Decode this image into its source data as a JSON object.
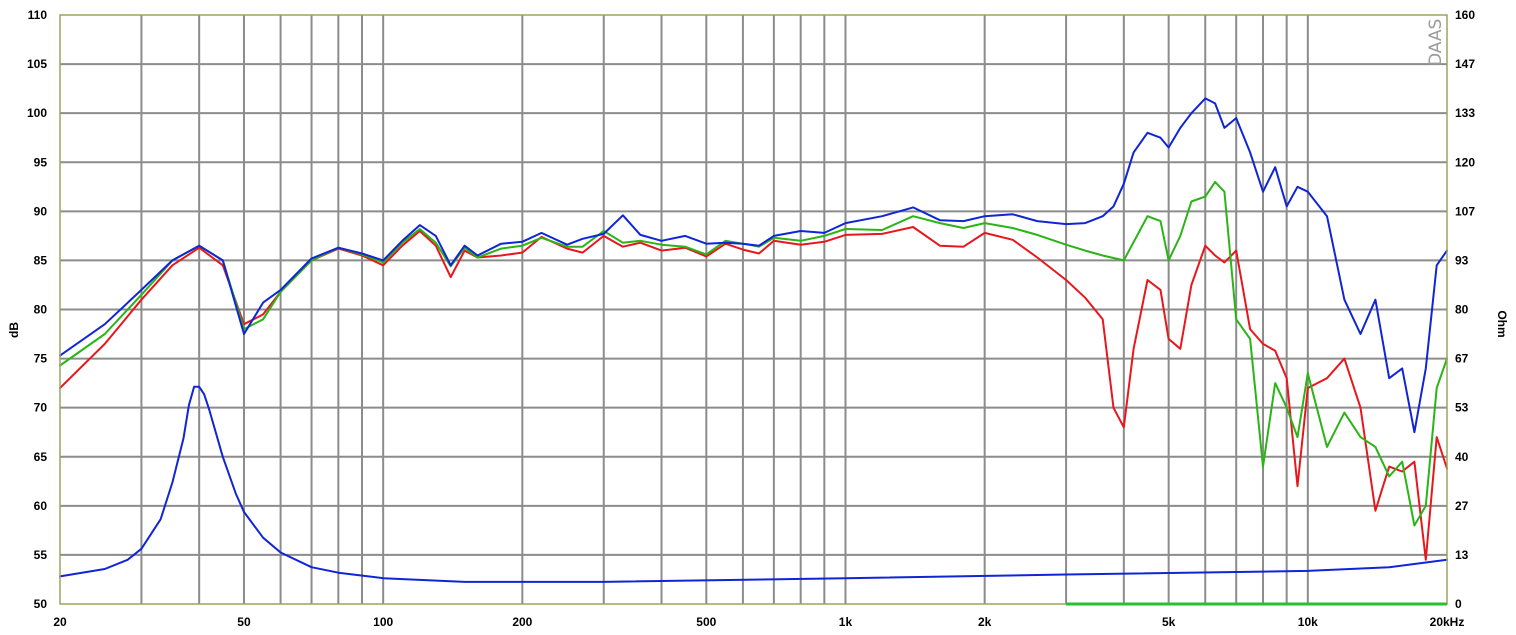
{
  "chart_data": {
    "type": "line",
    "title": "",
    "watermark": "DAAS",
    "xlabel": "",
    "ylabel_left": "dB",
    "ylabel_right": "Ohm",
    "x_scale": "log",
    "xlim": [
      20,
      20000
    ],
    "ylim_left": [
      50,
      110
    ],
    "ylim_right": [
      0,
      160
    ],
    "grid": true,
    "x_ticks": [
      {
        "v": 20,
        "label": "20"
      },
      {
        "v": 50,
        "label": "50"
      },
      {
        "v": 100,
        "label": "100"
      },
      {
        "v": 200,
        "label": "200"
      },
      {
        "v": 500,
        "label": "500"
      },
      {
        "v": 1000,
        "label": "1k"
      },
      {
        "v": 2000,
        "label": "2k"
      },
      {
        "v": 5000,
        "label": "5k"
      },
      {
        "v": 10000,
        "label": "10k"
      },
      {
        "v": 20000,
        "label": "20kHz"
      }
    ],
    "y_ticks_left": [
      "50",
      "55",
      "60",
      "65",
      "70",
      "75",
      "80",
      "85",
      "90",
      "95",
      "100",
      "105",
      "110"
    ],
    "y_ticks_right": [
      "0",
      "13",
      "27",
      "40",
      "53",
      "67",
      "80",
      "93",
      "107",
      "120",
      "133",
      "147",
      "160"
    ],
    "series": [
      {
        "color": "#e8171d",
        "axis": "left",
        "x": [
          20,
          25,
          30,
          35,
          40,
          45,
          50,
          55,
          60,
          70,
          80,
          90,
          100,
          110,
          120,
          130,
          140,
          150,
          160,
          180,
          200,
          220,
          250,
          270,
          300,
          330,
          360,
          400,
          450,
          500,
          550,
          600,
          650,
          700,
          800,
          900,
          1000,
          1200,
          1400,
          1600,
          1800,
          2000,
          2300,
          2600,
          3000,
          3300,
          3600,
          3800,
          4000,
          4200,
          4500,
          4800,
          5000,
          5300,
          5600,
          6000,
          6300,
          6600,
          7000,
          7500,
          8000,
          8500,
          9000,
          9500,
          10000,
          11000,
          12000,
          13000,
          14000,
          15000,
          16000,
          17000,
          18000,
          19000,
          20000
        ],
        "y": [
          72,
          76.5,
          81,
          84.5,
          86.3,
          84.5,
          78.5,
          79.5,
          81.8,
          85,
          86.2,
          85.5,
          84.5,
          86.5,
          88,
          86.5,
          83.3,
          86,
          85.3,
          85.5,
          85.8,
          87.4,
          86.2,
          85.8,
          87.5,
          86.4,
          86.8,
          86,
          86.3,
          85.4,
          86.7,
          86.1,
          85.7,
          87,
          86.6,
          86.9,
          87.6,
          87.7,
          88.4,
          86.5,
          86.4,
          87.8,
          87.1,
          85.3,
          83,
          81.2,
          79,
          70,
          68,
          76,
          83,
          82,
          77,
          76,
          82.5,
          86.5,
          85.5,
          84.8,
          86,
          78,
          76.5,
          75.8,
          73,
          62,
          72,
          73,
          75,
          70,
          59.5,
          64,
          63.5,
          64.5,
          54.5,
          67,
          63.8
        ]
      },
      {
        "color": "#2ab415",
        "axis": "left",
        "x": [
          20,
          25,
          30,
          35,
          40,
          45,
          50,
          55,
          60,
          70,
          80,
          90,
          100,
          110,
          120,
          130,
          140,
          150,
          160,
          180,
          200,
          220,
          250,
          270,
          300,
          330,
          360,
          400,
          450,
          500,
          550,
          600,
          650,
          700,
          800,
          900,
          1000,
          1200,
          1400,
          1600,
          1800,
          2000,
          2300,
          2600,
          3000,
          3300,
          3600,
          4000,
          4500,
          4800,
          5000,
          5300,
          5600,
          6000,
          6300,
          6600,
          7000,
          7500,
          8000,
          8500,
          9000,
          9500,
          10000,
          11000,
          12000,
          13000,
          14000,
          15000,
          16000,
          17000,
          18000,
          19000,
          20000
        ],
        "y": [
          74.3,
          77.5,
          81.5,
          85,
          86.5,
          85,
          78,
          79,
          81.8,
          85,
          86.3,
          85.6,
          84.8,
          86.8,
          88.2,
          86.8,
          84.4,
          86.3,
          85.3,
          86.2,
          86.5,
          87.3,
          86.4,
          86.4,
          88,
          86.8,
          87,
          86.6,
          86.4,
          85.6,
          87,
          86.7,
          86.4,
          87.3,
          87,
          87.5,
          88.2,
          88.1,
          89.5,
          88.8,
          88.3,
          88.8,
          88.3,
          87.6,
          86.6,
          86,
          85.5,
          85,
          89.5,
          89,
          85,
          87.5,
          91,
          91.5,
          93,
          92,
          79,
          77,
          64,
          72.5,
          70,
          67,
          73.5,
          66,
          69.5,
          67,
          66,
          63,
          64.5,
          58,
          60,
          72,
          75
        ]
      },
      {
        "color": "#1025d6",
        "axis": "left",
        "x": [
          20,
          25,
          30,
          35,
          40,
          45,
          50,
          55,
          60,
          70,
          80,
          90,
          100,
          110,
          120,
          130,
          140,
          150,
          160,
          180,
          200,
          220,
          250,
          270,
          300,
          330,
          360,
          400,
          450,
          500,
          550,
          600,
          650,
          700,
          800,
          900,
          1000,
          1200,
          1400,
          1600,
          1800,
          2000,
          2300,
          2600,
          3000,
          3300,
          3600,
          3800,
          4000,
          4200,
          4500,
          4800,
          5000,
          5300,
          5600,
          6000,
          6300,
          6600,
          7000,
          7500,
          8000,
          8500,
          9000,
          9500,
          10000,
          11000,
          12000,
          13000,
          14000,
          15000,
          16000,
          17000,
          18000,
          19000,
          20000
        ],
        "y": [
          75.3,
          78.5,
          82,
          85,
          86.5,
          85,
          77.5,
          80.7,
          82,
          85.2,
          86.3,
          85.7,
          85,
          87,
          88.6,
          87.5,
          84.5,
          86.5,
          85.5,
          86.7,
          86.9,
          87.8,
          86.6,
          87.2,
          87.7,
          89.6,
          87.6,
          87,
          87.5,
          86.7,
          86.8,
          86.7,
          86.5,
          87.5,
          88,
          87.8,
          88.8,
          89.5,
          90.4,
          89.1,
          89,
          89.5,
          89.7,
          89,
          88.7,
          88.8,
          89.5,
          90.5,
          92.8,
          96,
          98,
          97.5,
          96.5,
          98.5,
          100,
          101.5,
          101,
          98.5,
          99.5,
          96,
          92,
          94.5,
          90.5,
          92.5,
          92,
          89.5,
          81,
          77.5,
          81,
          73,
          74,
          67.5,
          74,
          84.5,
          86
        ]
      },
      {
        "color": "#1025d6",
        "axis": "right",
        "x": [
          20,
          25,
          28,
          30,
          33,
          35,
          37,
          38,
          39,
          40,
          41,
          42,
          45,
          48,
          50,
          55,
          60,
          70,
          80,
          100,
          150,
          300,
          1000,
          3000,
          10000,
          15000,
          20000
        ],
        "y": [
          7.5,
          9.5,
          12,
          15,
          23,
          33,
          45,
          54,
          59,
          59,
          57,
          53,
          40,
          30,
          25,
          18,
          14,
          10,
          8.5,
          7,
          6,
          6,
          7,
          8,
          9,
          10,
          12
        ]
      }
    ]
  }
}
